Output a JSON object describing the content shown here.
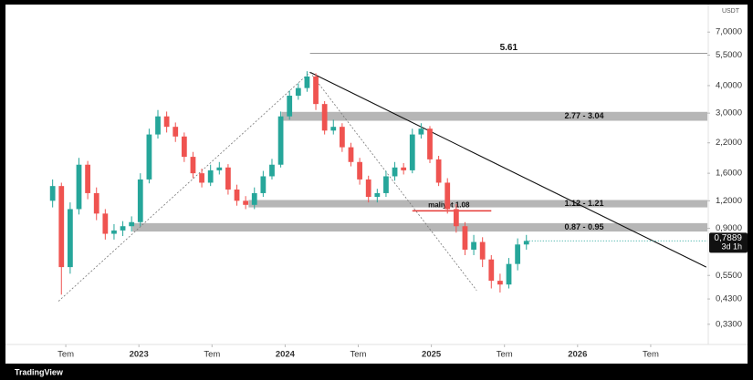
{
  "chart_data": {
    "type": "candlestick",
    "currency": "USDT",
    "brand": "TradingView",
    "log_scale": true,
    "up_color": "#26a69a",
    "down_color": "#ef5350",
    "xlim": [
      2022.1125,
      2026.8875
    ],
    "xticks": [
      {
        "value": 2022.5,
        "label": "Tem"
      },
      {
        "value": 2023,
        "label": "2023"
      },
      {
        "value": 2023.5,
        "label": "Tem"
      },
      {
        "value": 2024,
        "label": "2024"
      },
      {
        "value": 2024.5,
        "label": "Tem"
      },
      {
        "value": 2025,
        "label": "2025"
      },
      {
        "value": 2025.5,
        "label": "Tem"
      },
      {
        "value": 2026,
        "label": "2026"
      },
      {
        "value": 2026.5,
        "label": "Tem"
      }
    ],
    "ylim": [
      0.275,
      8.9
    ],
    "yticks": [
      {
        "value": 7,
        "label": "7,0000"
      },
      {
        "value": 5.5,
        "label": "5,5000"
      },
      {
        "value": 4,
        "label": "4,0000"
      },
      {
        "value": 3,
        "label": "3,0000"
      },
      {
        "value": 2.2,
        "label": "2,2000"
      },
      {
        "value": 1.6,
        "label": "1,6000"
      },
      {
        "value": 1.2,
        "label": "1,2000"
      },
      {
        "value": 0.9,
        "label": "0,9000"
      },
      {
        "value": 0.55,
        "label": "0,5500"
      },
      {
        "value": 0.43,
        "label": "0,4300"
      },
      {
        "value": 0.33,
        "label": "0,3300"
      }
    ],
    "x": [
      2022.41,
      2022.47,
      2022.53,
      2022.59,
      2022.65,
      2022.71,
      2022.77,
      2022.83,
      2022.89,
      2022.95,
      2023.01,
      2023.07,
      2023.13,
      2023.19,
      2023.25,
      2023.31,
      2023.37,
      2023.43,
      2023.49,
      2023.55,
      2023.61,
      2023.67,
      2023.73,
      2023.79,
      2023.85,
      2023.91,
      2023.97,
      2024.03,
      2024.09,
      2024.15,
      2024.21,
      2024.27,
      2024.33,
      2024.39,
      2024.45,
      2024.51,
      2024.57,
      2024.63,
      2024.69,
      2024.75,
      2024.81,
      2024.87,
      2024.93,
      2024.99,
      2025.05,
      2025.11,
      2025.17,
      2025.23,
      2025.29,
      2025.35,
      2025.41,
      2025.47,
      2025.53,
      2025.59,
      2025.65
    ],
    "open": [
      1.2,
      1.4,
      0.6,
      1.1,
      1.75,
      1.3,
      1.05,
      0.85,
      0.88,
      0.92,
      0.96,
      1.5,
      2.4,
      2.9,
      2.6,
      2.35,
      1.9,
      1.6,
      1.45,
      1.65,
      1.7,
      1.35,
      1.2,
      1.15,
      1.3,
      1.55,
      1.75,
      2.9,
      3.6,
      3.9,
      4.4,
      3.3,
      2.5,
      2.6,
      2.1,
      1.8,
      1.5,
      1.25,
      1.3,
      1.55,
      1.7,
      1.65,
      2.4,
      2.55,
      1.85,
      1.45,
      1.1,
      0.92,
      0.72,
      0.78,
      0.65,
      0.52,
      0.5,
      0.62,
      0.76
    ],
    "high": [
      1.5,
      1.45,
      1.18,
      1.88,
      1.82,
      1.38,
      1.1,
      0.94,
      0.97,
      1.02,
      1.6,
      2.55,
      3.1,
      3.05,
      2.72,
      2.45,
      2.0,
      1.68,
      1.75,
      1.8,
      1.76,
      1.42,
      1.26,
      1.38,
      1.64,
      1.86,
      3.05,
      3.8,
      4.1,
      4.65,
      4.55,
      3.4,
      2.8,
      2.7,
      2.2,
      1.88,
      1.56,
      1.36,
      1.64,
      1.8,
      1.78,
      2.55,
      2.7,
      2.62,
      1.92,
      1.52,
      1.16,
      0.96,
      0.84,
      0.82,
      0.68,
      0.56,
      0.66,
      0.81,
      0.84
    ],
    "low": [
      1.12,
      0.45,
      0.56,
      1.04,
      1.22,
      0.98,
      0.8,
      0.8,
      0.83,
      0.87,
      0.92,
      1.44,
      2.3,
      2.45,
      2.22,
      1.8,
      1.52,
      1.38,
      1.4,
      1.58,
      1.28,
      1.14,
      1.1,
      1.1,
      1.25,
      1.5,
      1.7,
      2.8,
      3.45,
      3.75,
      3.1,
      2.4,
      2.4,
      2.0,
      1.72,
      1.42,
      1.18,
      1.18,
      1.25,
      1.48,
      1.58,
      1.6,
      2.3,
      1.78,
      1.4,
      1.05,
      0.86,
      0.68,
      0.68,
      0.6,
      0.48,
      0.46,
      0.48,
      0.58,
      0.72
    ],
    "close": [
      1.4,
      0.6,
      1.1,
      1.75,
      1.3,
      1.05,
      0.85,
      0.88,
      0.92,
      0.96,
      1.5,
      2.4,
      2.9,
      2.6,
      2.35,
      1.9,
      1.6,
      1.45,
      1.65,
      1.7,
      1.35,
      1.2,
      1.15,
      1.3,
      1.55,
      1.75,
      2.9,
      3.6,
      3.9,
      4.4,
      3.3,
      2.5,
      2.6,
      2.1,
      1.8,
      1.5,
      1.25,
      1.3,
      1.55,
      1.7,
      1.65,
      2.4,
      2.55,
      1.85,
      1.45,
      1.1,
      0.92,
      0.72,
      0.78,
      0.65,
      0.52,
      0.5,
      0.62,
      0.76,
      0.7889
    ],
    "zones": [
      {
        "label": "2.77 - 3.04",
        "low": 2.77,
        "high": 3.04,
        "x_start": 2023.975
      },
      {
        "label": "1.12 - 1.21",
        "low": 1.12,
        "high": 1.21,
        "x_start": 2023.75
      },
      {
        "label": "0.87 - 0.95",
        "low": 0.87,
        "high": 0.95,
        "x_start": 2022.956
      }
    ],
    "levels": [
      {
        "label": "5.61",
        "value": 5.61,
        "x_start": 2024.17,
        "color": "#999999"
      },
      {
        "label": "maliyet 1.08",
        "value": 1.08,
        "x_start": 2024.87,
        "x_end": 2025.41,
        "color": "#e53935"
      }
    ],
    "trendlines": [
      {
        "x": [
          2024.17,
          2026.88
        ],
        "y": [
          4.6,
          0.6
        ],
        "dashed": false
      },
      {
        "x": [
          2022.45,
          2024.17
        ],
        "y": [
          0.42,
          4.6
        ],
        "dashed": true
      },
      {
        "x": [
          2024.17,
          2025.31
        ],
        "y": [
          4.6,
          0.47
        ],
        "dashed": true
      }
    ],
    "last_price": {
      "value": 0.7889,
      "label": "0,7889",
      "countdown": "3d 1h"
    }
  }
}
